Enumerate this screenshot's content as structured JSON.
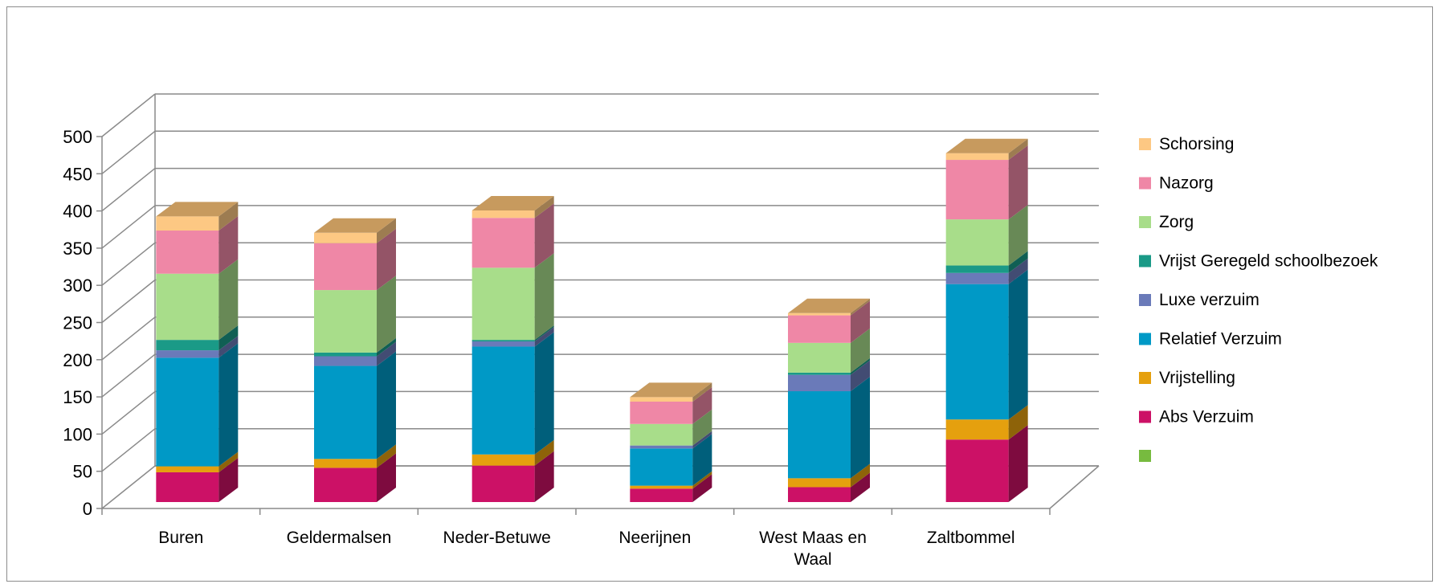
{
  "chart_data": {
    "type": "bar",
    "stacked": true,
    "three_d": true,
    "categories": [
      "Buren",
      "Geldermalsen",
      "Neder-Betuwe",
      "Neerijnen",
      "West Maas en Waal",
      "Zaltbommel"
    ],
    "category_lines": [
      [
        "Buren"
      ],
      [
        "Geldermalsen"
      ],
      [
        "Neder-Betuwe"
      ],
      [
        "Neerijnen"
      ],
      [
        "West Maas en",
        "Waal"
      ],
      [
        "Zaltbommel"
      ]
    ],
    "ylim": [
      0,
      500
    ],
    "yticks": [
      "0",
      "50",
      "100",
      "150",
      "200",
      "250",
      "300",
      "350",
      "400",
      "450",
      "500"
    ],
    "grid": true,
    "legend_position": "right",
    "series": [
      {
        "name": "Abs Verzuim",
        "color": "#cc1166",
        "values": [
          40,
          46,
          49,
          18,
          20,
          84
        ]
      },
      {
        "name": "Vrijstelling",
        "color": "#e5a00e",
        "values": [
          8,
          12,
          15,
          4,
          12,
          27
        ]
      },
      {
        "name": "Relatief Verzuim",
        "color": "#0099c6",
        "values": [
          146,
          125,
          145,
          50,
          117,
          182
        ]
      },
      {
        "name": "Luxe verzuim",
        "color": "#6a7ab9",
        "values": [
          10,
          13,
          7,
          4,
          22,
          15
        ]
      },
      {
        "name": "Vrijst Geregeld schoolbezoek",
        "color": "#1a9a87",
        "values": [
          14,
          5,
          2,
          0,
          3,
          10
        ]
      },
      {
        "name": "Zorg",
        "color": "#a8dd8a",
        "values": [
          89,
          84,
          97,
          29,
          40,
          62
        ]
      },
      {
        "name": "Nazorg",
        "color": "#ef87a6",
        "values": [
          58,
          63,
          67,
          30,
          37,
          80
        ]
      },
      {
        "name": "Schorsing",
        "color": "#fdc883",
        "values": [
          19,
          14,
          10,
          6,
          3,
          9
        ]
      },
      {
        "name": "",
        "color": "#77bb3f",
        "values": [
          0,
          0,
          0,
          0,
          0,
          0
        ]
      }
    ],
    "legend": [
      "Schorsing",
      "Nazorg",
      "Zorg",
      "Vrijst Geregeld schoolbezoek",
      "Luxe verzuim",
      "Relatief Verzuim",
      "Vrijstelling",
      "Abs Verzuim",
      ""
    ]
  }
}
